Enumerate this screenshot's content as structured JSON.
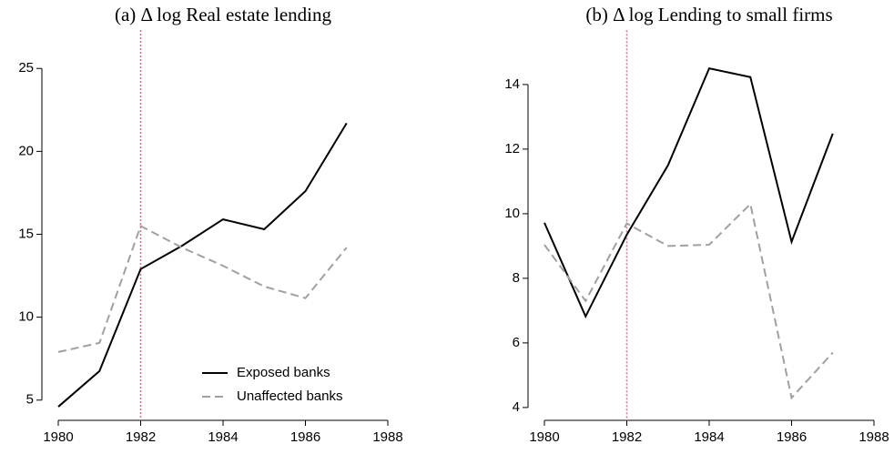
{
  "chart_data": [
    {
      "type": "line",
      "title": "(a) Δ log Real estate lending",
      "x": [
        1980,
        1981,
        1982,
        1983,
        1984,
        1985,
        1986,
        1987
      ],
      "series": [
        {
          "name": "Exposed banks",
          "color": "#000000",
          "dash": false,
          "values": [
            4.6,
            6.75,
            12.9,
            14.3,
            15.9,
            15.3,
            17.6,
            21.7
          ]
        },
        {
          "name": "Unaffected banks",
          "color": "#a0a0a0",
          "dash": true,
          "values": [
            7.9,
            8.45,
            15.5,
            14.2,
            13.1,
            11.85,
            11.15,
            14.2
          ]
        }
      ],
      "xlim": [
        1980,
        1988
      ],
      "xticks": [
        1980,
        1982,
        1984,
        1986,
        1988
      ],
      "ylim": [
        4,
        26
      ],
      "yticks": [
        5,
        10,
        15,
        20,
        25
      ],
      "vline": 1982,
      "vline_color": "#d4789c",
      "legend": "lower right"
    },
    {
      "type": "line",
      "title": "(b) Δ log Lending to small firms",
      "x": [
        1980,
        1981,
        1982,
        1983,
        1984,
        1985,
        1986,
        1987
      ],
      "series": [
        {
          "color": "#000000",
          "dash": false,
          "values": [
            9.72,
            6.82,
            9.35,
            11.5,
            14.5,
            14.23,
            9.13,
            12.48
          ]
        },
        {
          "color": "#a0a0a0",
          "dash": true,
          "values": [
            9.04,
            7.3,
            9.7,
            9.0,
            9.04,
            10.3,
            4.3,
            5.7
          ]
        }
      ],
      "xlim": [
        1980,
        1988
      ],
      "xticks": [
        1980,
        1982,
        1984,
        1986,
        1988
      ],
      "ylim": [
        3.8,
        15
      ],
      "yticks": [
        4,
        6,
        8,
        10,
        12,
        14
      ],
      "vline": 1982,
      "vline_color": "#d4789c"
    }
  ]
}
